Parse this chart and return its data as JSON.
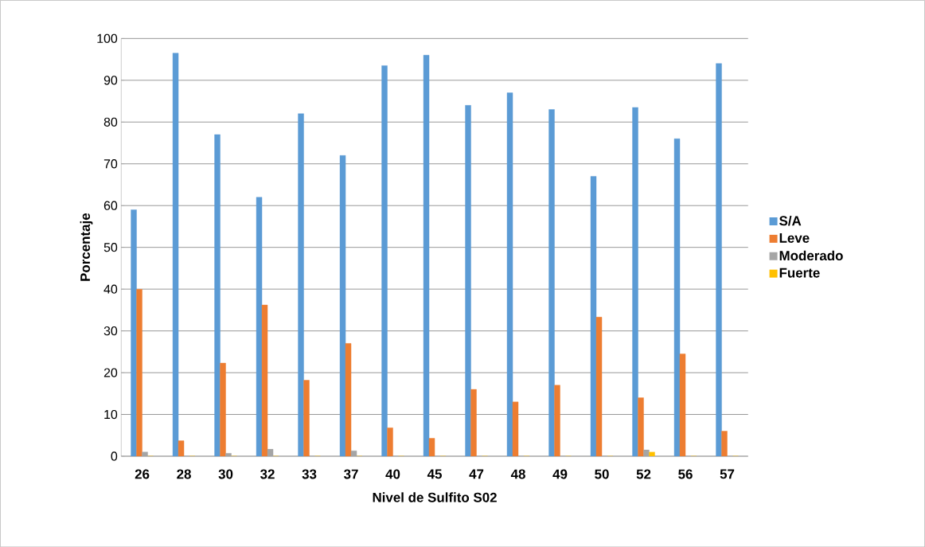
{
  "chart_data": {
    "type": "bar",
    "xlabel": "Nivel de Sulfito S02",
    "ylabel": "Porcentaje",
    "categories": [
      "26",
      "28",
      "30",
      "32",
      "33",
      "37",
      "40",
      "45",
      "47",
      "48",
      "49",
      "50",
      "52",
      "56",
      "57"
    ],
    "series": [
      {
        "name": "S/A",
        "color": "#5b9bd5",
        "values": [
          59,
          96.5,
          77,
          62,
          82,
          72,
          93.5,
          96,
          84,
          87,
          83,
          67,
          83.5,
          76,
          94
        ]
      },
      {
        "name": "Leve",
        "color": "#ed7d31",
        "values": [
          40,
          3.7,
          22.3,
          36.2,
          18.2,
          27,
          6.8,
          4.3,
          16,
          13,
          17,
          33.3,
          14,
          24.5,
          6
        ]
      },
      {
        "name": "Moderado",
        "color": "#a5a5a5",
        "values": [
          1,
          0,
          0.7,
          1.7,
          0,
          1.3,
          0,
          0,
          0,
          0,
          0,
          0,
          1.5,
          0,
          0
        ]
      },
      {
        "name": "Fuerte",
        "color": "#ffc000",
        "values": [
          0,
          0,
          0,
          0,
          0,
          0,
          0,
          0,
          0,
          0,
          0,
          0,
          1,
          0,
          0
        ]
      }
    ],
    "ylim": [
      0,
      100
    ],
    "yticks": [
      0,
      10,
      20,
      30,
      40,
      50,
      60,
      70,
      80,
      90,
      100
    ],
    "grid": "y",
    "legend": "right"
  }
}
